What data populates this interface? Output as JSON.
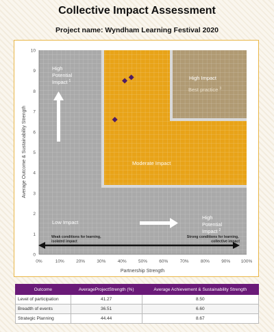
{
  "header": {
    "title": "Collective Impact Assessment",
    "subtitle": "Project name: Wyndham Learning Festival 2020"
  },
  "colors": {
    "gray": "#a9a9a9",
    "orange": "#e8a318",
    "tan": "#b09a73",
    "marker": "#4e1d63",
    "table_header": "#6a1a78"
  },
  "zones": {
    "high_potential_left": "High Potential Impact",
    "high_potential_left_sup": "1",
    "high_impact": "High Impact",
    "best_practice": "Best practice",
    "best_practice_sup": "3",
    "moderate_impact": "Moderate Impact",
    "low_impact": "Low Impact",
    "high_potential_right": "High Potential Impact",
    "high_potential_right_sup": "2",
    "weak_conditions": "Weak conditions for learning, isolated impact",
    "strong_conditions": "Strong conditions for learning, collective impact"
  },
  "chart_data": {
    "type": "scatter",
    "xlabel": "Partnership Strength",
    "ylabel": "Average Outcome & Sustainability Strength",
    "xlim": [
      0,
      100
    ],
    "ylim": [
      0,
      10
    ],
    "x_ticks": [
      "0%",
      "10%",
      "20%",
      "30%",
      "40%",
      "50%",
      "60%",
      "70%",
      "80%",
      "90%",
      "100%"
    ],
    "y_ticks": [
      "0",
      "1",
      "2",
      "3",
      "4",
      "5",
      "6",
      "7",
      "8",
      "9",
      "10"
    ],
    "grid": true,
    "points": [
      {
        "x": 41.27,
        "y": 8.5
      },
      {
        "x": 36.51,
        "y": 6.6
      },
      {
        "x": 44.44,
        "y": 8.67
      }
    ]
  },
  "table": {
    "headers": [
      "Outcome",
      "AverageProjectStrength (%)",
      "Average Achievement & Sustainability Strength"
    ],
    "rows": [
      [
        "Level of participation",
        "41.27",
        "8.50"
      ],
      [
        "Breadth of events",
        "36.51",
        "6.60"
      ],
      [
        "Strategic Planning",
        "44.44",
        "8.67"
      ]
    ]
  }
}
